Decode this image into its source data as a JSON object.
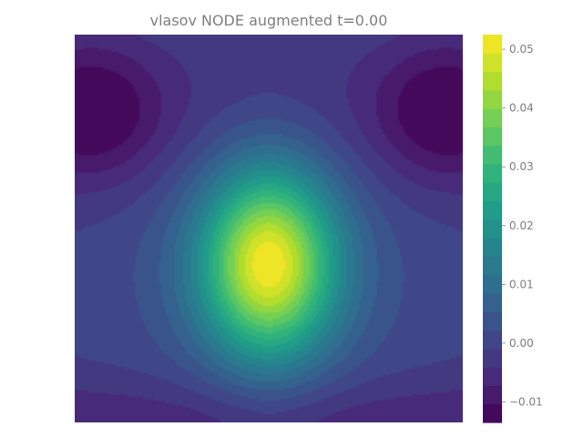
{
  "figure": {
    "title": "vlasov NODE augmented t=0.00"
  },
  "chart_data": {
    "type": "heatmap",
    "title": "vlasov NODE augmented t=0.00",
    "xlabel": "",
    "ylabel": "",
    "grid": false,
    "colormap": "viridis",
    "colormap_colors": [
      "#440154",
      "#482878",
      "#3e4989",
      "#31688e",
      "#26828e",
      "#1f9e89",
      "#35b779",
      "#6ece58",
      "#b5de2b",
      "#fde725"
    ],
    "levels": 21,
    "field_description": "smooth blob peaking at center-lower region, low lobes in upper-left and upper-right corners",
    "peak": {
      "u": 0.5,
      "v": 0.62,
      "value": 0.052
    },
    "value_range": [
      -0.0135,
      0.0525
    ],
    "colorbar": {
      "ticks": [
        -0.01,
        0.0,
        0.01,
        0.02,
        0.03,
        0.04,
        0.05
      ],
      "tick_labels": [
        "−0.01",
        "0.00",
        "0.01",
        "0.02",
        "0.03",
        "0.04",
        "0.05"
      ]
    }
  }
}
